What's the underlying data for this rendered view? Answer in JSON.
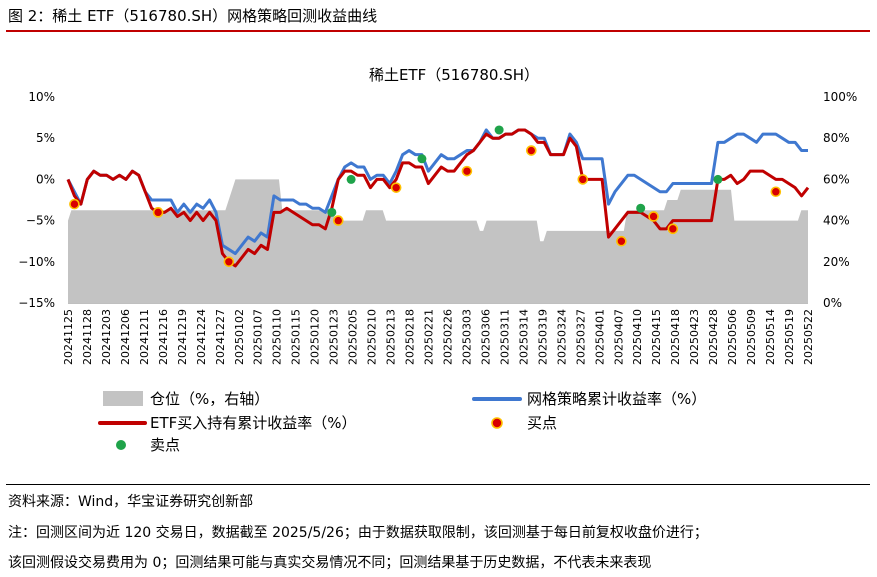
{
  "figure": {
    "title": "图 2：稀土 ETF（516780.SH）网格策略回测收益曲线",
    "source": "资料来源：Wind，华宝证券研究创新部",
    "note_line1": "注：回测区间为近 120 交易日，数据截至 2025/5/26；由于数据获取限制，该回测基于每日前复权收盘价进行；",
    "note_line2": "该回测假设交易费用为 0；回测结果可能与真实交易情况不同；回测结果基于历史数据，不代表未来表现"
  },
  "colors": {
    "accent_rule": "#c00000",
    "position": "#c3c3c3",
    "strategy": "#3f78d0",
    "etf": "#c00000",
    "buy_fill": "#d80000",
    "buy_stroke": "#ffc000",
    "sell_fill": "#1fa34a"
  },
  "chart_data": {
    "type": "line",
    "title": "稀土ETF（516780.SH）",
    "ylim": [
      -15,
      10
    ],
    "y_ticks": [
      10,
      5,
      0,
      -5,
      -10,
      -15
    ],
    "y_tick_labels": [
      "10%",
      "5%",
      "0%",
      "−5%",
      "−10%",
      "−15%"
    ],
    "y2lim": [
      0,
      100
    ],
    "y2_ticks": [
      100,
      80,
      60,
      40,
      20,
      0
    ],
    "y2_tick_labels": [
      "100%",
      "80%",
      "60%",
      "40%",
      "20%",
      "0%"
    ],
    "x_tick_labels": [
      "20241125",
      "20241128",
      "20241203",
      "20241206",
      "20241211",
      "20241216",
      "20241219",
      "20241224",
      "20241227",
      "20250102",
      "20250107",
      "20250110",
      "20250115",
      "20250120",
      "20250123",
      "20250205",
      "20250210",
      "20250213",
      "20250218",
      "20250221",
      "20250226",
      "20250303",
      "20250306",
      "20250311",
      "20250314",
      "20250319",
      "20250324",
      "20250327",
      "20250401",
      "20250407",
      "20250410",
      "20250415",
      "20250418",
      "20250423",
      "20250428",
      "20250506",
      "20250509",
      "20250514",
      "20250519",
      "20250522"
    ],
    "series": [
      {
        "name": "仓位（%，右轴）",
        "axis": "right",
        "kind": "area",
        "values": [
          40,
          45,
          45,
          45,
          45,
          45,
          45,
          45,
          45,
          45,
          45,
          45,
          45,
          45,
          45,
          45,
          45,
          45,
          45,
          45,
          45,
          45,
          45,
          45,
          45,
          45,
          45,
          45,
          45,
          45,
          45,
          45,
          45,
          45,
          45,
          45,
          45,
          45,
          45,
          45,
          45,
          45,
          45,
          45,
          45,
          45,
          45,
          45,
          50,
          55,
          60,
          60,
          60,
          60,
          60,
          60,
          60,
          60,
          60,
          60,
          60,
          60,
          60,
          60,
          45,
          45,
          45,
          45,
          45,
          45,
          45,
          45,
          45,
          45,
          45,
          45,
          45,
          45,
          45,
          45,
          40,
          40,
          40,
          40,
          40,
          40,
          40,
          40,
          40,
          45,
          45,
          45,
          45,
          45,
          45,
          40,
          40,
          40,
          40,
          40,
          40,
          40,
          40,
          40,
          40,
          40,
          40,
          40,
          40,
          40,
          40,
          40,
          40,
          40,
          40,
          40,
          40,
          40,
          40,
          40,
          40,
          40,
          40,
          35,
          35,
          40,
          40,
          40,
          40,
          40,
          40,
          40,
          40,
          40,
          40,
          40,
          40,
          40,
          40,
          40,
          40,
          30,
          30,
          35,
          35,
          35,
          35,
          35,
          35,
          35,
          35,
          35,
          35,
          35,
          35,
          35,
          35,
          35,
          35,
          35,
          35,
          35,
          35,
          35,
          35,
          35,
          35,
          45,
          45,
          45,
          45,
          45,
          45,
          45,
          45,
          45,
          45,
          45,
          45,
          50,
          50,
          50,
          50,
          55,
          55,
          55,
          55,
          55,
          55,
          55,
          55,
          55,
          55,
          55,
          55,
          55,
          55,
          55,
          55,
          40,
          40,
          40,
          40,
          40,
          40,
          40,
          40,
          40,
          40,
          40,
          40,
          40,
          40,
          40,
          40,
          40,
          40,
          40,
          40,
          45,
          45,
          45
        ]
      },
      {
        "name": "网格策略累计收益率（%）",
        "axis": "left",
        "kind": "line",
        "values": [
          0,
          -1.5,
          -3,
          0,
          1,
          0.5,
          0.5,
          0,
          0.5,
          0,
          1,
          0.5,
          -1.5,
          -2.5,
          -2.5,
          -2.5,
          -2.5,
          -4,
          -3,
          -4,
          -3,
          -3.5,
          -2.5,
          -4,
          -8,
          -8.5,
          -9,
          -8,
          -7,
          -7.5,
          -6.5,
          -7,
          -2,
          -2.5,
          -2.5,
          -2.5,
          -3,
          -3,
          -3.5,
          -3.5,
          -4,
          -2,
          0,
          1.5,
          2,
          1.5,
          1.5,
          0,
          0.5,
          0.5,
          -0.5,
          1,
          3,
          3.5,
          3,
          3,
          1,
          2,
          3,
          2.5,
          2.5,
          3,
          3.5,
          3.5,
          4.5,
          6,
          5,
          5,
          5.5,
          5.5,
          6,
          6,
          5.5,
          5,
          5,
          3,
          3,
          3,
          5.5,
          4.5,
          2.5,
          2.5,
          2.5,
          2.5,
          -3,
          -1.5,
          -0.5,
          0.5,
          0.5,
          0,
          -0.5,
          -1,
          -1.5,
          -1.5,
          -0.5,
          -0.5,
          -0.5,
          -0.5,
          -0.5,
          -0.5,
          -0.5,
          4.5,
          4.5,
          5,
          5.5,
          5.5,
          5,
          4.5,
          5.5,
          5.5,
          5.5,
          5,
          4.5,
          4.5,
          3.5,
          3.5
        ]
      },
      {
        "name": "ETF买入持有累计收益率（%）",
        "axis": "left",
        "kind": "line",
        "values": [
          0,
          -2,
          -3,
          0,
          1,
          0.5,
          0.5,
          0,
          0.5,
          0,
          1,
          0.5,
          -1.5,
          -3.5,
          -4,
          -4,
          -3.5,
          -4.5,
          -4,
          -5,
          -4,
          -5,
          -4,
          -5,
          -9,
          -10,
          -10.5,
          -9.5,
          -8.5,
          -9,
          -8,
          -8.5,
          -4,
          -4,
          -3.5,
          -4,
          -4.5,
          -5,
          -5.5,
          -5.5,
          -6,
          -3.5,
          0,
          1,
          1,
          0.5,
          0.5,
          -1,
          0,
          0,
          -1,
          0,
          2,
          2,
          1.5,
          1.5,
          -0.5,
          0.5,
          1.5,
          1,
          1,
          2,
          3,
          3.5,
          4.5,
          5.5,
          5,
          5,
          5.5,
          5.5,
          6,
          6,
          5.5,
          4.5,
          4.5,
          3,
          3,
          3,
          5,
          4,
          0,
          0,
          0,
          0,
          -7,
          -6,
          -5,
          -4,
          -4,
          -4,
          -4.5,
          -5,
          -6,
          -6,
          -5,
          -5,
          -5,
          -5,
          -5,
          -5,
          -5,
          0,
          0,
          0.5,
          -0.5,
          0,
          1,
          1,
          1,
          0.5,
          0,
          0,
          -0.5,
          -1,
          -2,
          -1
        ]
      }
    ],
    "buy_points": {
      "name": "买点",
      "points": [
        [
          1,
          -3
        ],
        [
          14,
          -4
        ],
        [
          25,
          -10
        ],
        [
          42,
          -5
        ],
        [
          51,
          -1
        ],
        [
          62,
          1
        ],
        [
          72,
          3.5
        ],
        [
          80,
          0
        ],
        [
          86,
          -7.5
        ],
        [
          91,
          -4.5
        ],
        [
          94,
          -6
        ],
        [
          110,
          -1.5
        ]
      ]
    },
    "sell_points": {
      "name": "卖点",
      "points": [
        [
          41,
          -4
        ],
        [
          44,
          0
        ],
        [
          55,
          2.5
        ],
        [
          67,
          6
        ],
        [
          89,
          -3.5
        ],
        [
          101,
          0
        ]
      ]
    },
    "legend": {
      "position": "bottom",
      "items": [
        {
          "key": "position",
          "label": "仓位（%，右轴）",
          "kind": "area"
        },
        {
          "key": "strategy",
          "label": "网格策略累计收益率（%）",
          "kind": "line"
        },
        {
          "key": "etf",
          "label": "ETF买入持有累计收益率（%）",
          "kind": "line"
        },
        {
          "key": "buy",
          "label": "买点",
          "kind": "dot"
        },
        {
          "key": "sell",
          "label": "卖点",
          "kind": "dot"
        }
      ]
    }
  }
}
